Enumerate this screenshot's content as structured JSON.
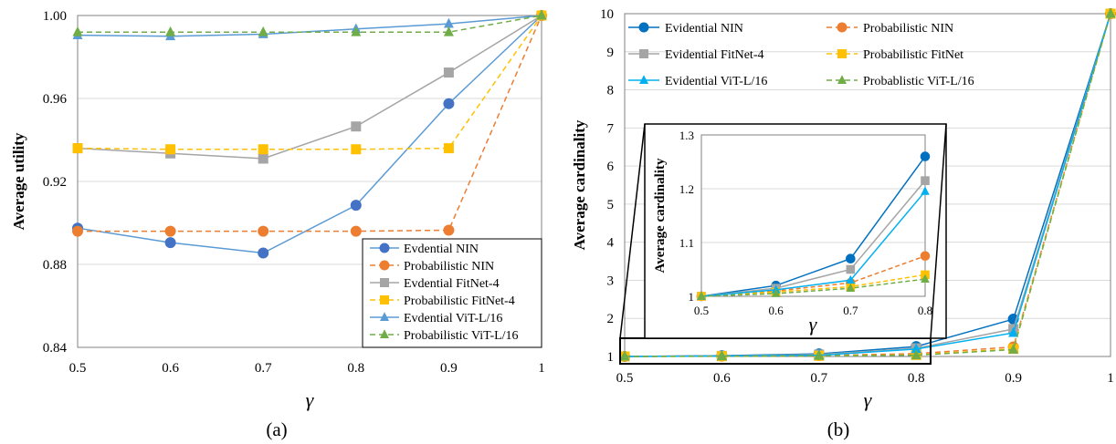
{
  "colors": {
    "evidential_nin": "#4472C4",
    "probabilistic_nin": "#ED7D31",
    "evidential_fitnet": "#A5A5A5",
    "probabilistic_fitnet": "#FFC000",
    "evidential_vit": "#5B9BD5",
    "probabilistic_vit": "#70AD47",
    "grid": "#d9d9d9"
  },
  "chart_data": [
    {
      "type": "line",
      "caption": "(a)",
      "xlabel": "γ",
      "ylabel": "Average utility",
      "x": [
        0.5,
        0.6,
        0.7,
        0.8,
        0.9,
        1
      ],
      "x_tick_labels": [
        "0.5",
        "0.6",
        "0.7",
        "0.8",
        "0.9",
        "1"
      ],
      "ylim": [
        0.84,
        1.0
      ],
      "y_ticks": [
        0.84,
        0.88,
        0.92,
        0.96,
        1.0
      ],
      "y_tick_labels": [
        "0.84",
        "0.88",
        "0.92",
        "0.96",
        "1.00"
      ],
      "grid": true,
      "legend_position": "bottom-right",
      "series": [
        {
          "name": "Evdential NIN",
          "marker": "circle",
          "dashed": false,
          "color": "#4472C4",
          "line_color": "#5B9BD5",
          "values": [
            0.8975,
            0.8905,
            0.8855,
            0.9085,
            0.9575,
            1.0
          ]
        },
        {
          "name": "Probabilistic NIN",
          "marker": "circle",
          "dashed": true,
          "color": "#ED7D31",
          "line_color": "#ED7D31",
          "values": [
            0.896,
            0.896,
            0.896,
            0.896,
            0.8965,
            1.0
          ]
        },
        {
          "name": "Evdential FitNet-4",
          "marker": "square",
          "dashed": false,
          "color": "#A5A5A5",
          "line_color": "#A5A5A5",
          "values": [
            0.936,
            0.9335,
            0.931,
            0.9465,
            0.9725,
            1.0
          ]
        },
        {
          "name": "Probabilistic FitNet-4",
          "marker": "square",
          "dashed": true,
          "color": "#FFC000",
          "line_color": "#FFC000",
          "values": [
            0.936,
            0.9355,
            0.9355,
            0.9355,
            0.936,
            1.0
          ]
        },
        {
          "name": "Evdential ViT-L/16",
          "marker": "triangle",
          "dashed": false,
          "color": "#5B9BD5",
          "line_color": "#5B9BD5",
          "values": [
            0.9905,
            0.99,
            0.991,
            0.9935,
            0.996,
            1.0
          ]
        },
        {
          "name": "Probabilistic ViT-L/16",
          "marker": "triangle",
          "dashed": true,
          "color": "#70AD47",
          "line_color": "#70AD47",
          "values": [
            0.992,
            0.992,
            0.992,
            0.992,
            0.992,
            1.0
          ]
        }
      ]
    },
    {
      "type": "line",
      "caption": "(b)",
      "xlabel": "γ",
      "ylabel": "Average cardinality",
      "x": [
        0.5,
        0.6,
        0.7,
        0.8,
        0.9,
        1
      ],
      "x_tick_labels": [
        "0.5",
        "0.6",
        "0.7",
        "0.8",
        "0.9",
        "1"
      ],
      "ylim": [
        1,
        10
      ],
      "y_ticks": [
        1,
        2,
        3,
        4,
        5,
        6,
        7,
        8,
        9,
        10
      ],
      "y_tick_labels": [
        "1",
        "2",
        "3",
        "4",
        "5",
        "6",
        "7",
        "8",
        "9",
        "10"
      ],
      "grid": true,
      "legend_position": "top-left",
      "series": [
        {
          "name": "Evidential NIN",
          "marker": "circle",
          "dashed": false,
          "color": "#0070C0",
          "values": [
            1.0,
            1.02,
            1.07,
            1.26,
            1.98,
            10.0
          ]
        },
        {
          "name": "Probabilistic NIN",
          "marker": "circle",
          "dashed": true,
          "color": "#ED7D31",
          "values": [
            1.0,
            1.01,
            1.025,
            1.075,
            1.25,
            10.0
          ]
        },
        {
          "name": "Evidential FitNet-4",
          "marker": "square",
          "dashed": false,
          "color": "#A5A5A5",
          "values": [
            1.0,
            1.015,
            1.05,
            1.215,
            1.72,
            10.0
          ]
        },
        {
          "name": "Probabilistic FitNet",
          "marker": "square",
          "dashed": true,
          "color": "#FFC000",
          "values": [
            1.0,
            1.008,
            1.018,
            1.04,
            1.2,
            10.0
          ]
        },
        {
          "name": "Evidential ViT-L/16",
          "marker": "triangle",
          "dashed": false,
          "color": "#00B0F0",
          "values": [
            1.0,
            1.012,
            1.03,
            1.195,
            1.62,
            10.0
          ]
        },
        {
          "name": "Probablistic ViT-L/16",
          "marker": "triangle",
          "dashed": true,
          "color": "#70AD47",
          "values": [
            1.0,
            1.005,
            1.015,
            1.032,
            1.18,
            10.0
          ]
        }
      ],
      "inset": {
        "xlabel": "γ",
        "ylabel": "Average cardinality",
        "x": [
          0.5,
          0.6,
          0.7,
          0.8
        ],
        "x_tick_labels": [
          "0.5",
          "0.6",
          "0.7",
          "0.8"
        ],
        "ylim": [
          1,
          1.3
        ],
        "y_ticks": [
          1,
          1.1,
          1.2,
          1.3
        ],
        "y_tick_labels": [
          "1",
          "1.1",
          "1.2",
          "1.3"
        ],
        "grid": true
      }
    }
  ]
}
